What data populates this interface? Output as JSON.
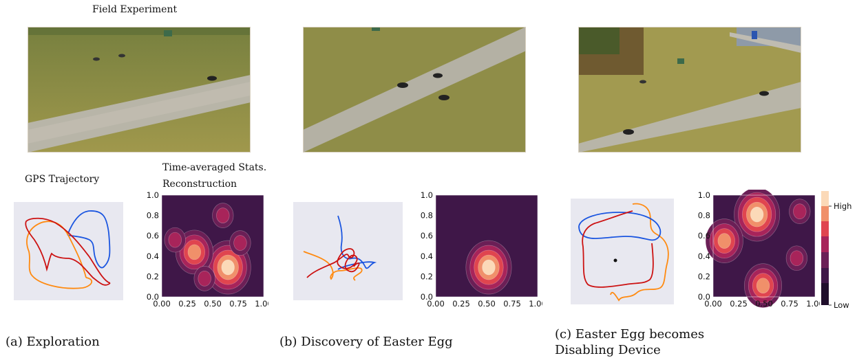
{
  "figure": {
    "titles": {
      "field_experiment": "Field Experiment",
      "gps_trajectory": "GPS Trajectory",
      "time_averaged": "Time-averaged Stats.",
      "reconstruction": "Reconstruction"
    },
    "captions": [
      {
        "line1": "(a) Exploration",
        "line2": ""
      },
      {
        "line1": "(b) Discovery of Easter Egg",
        "line2": ""
      },
      {
        "line1": "(c) Easter Egg becomes",
        "line2": "Disabling Device"
      }
    ],
    "colorbar": {
      "high": "High",
      "low": "Low"
    },
    "colors": {
      "trajectory_red": "#cc1111",
      "trajectory_orange": "#ff8a10",
      "trajectory_blue": "#1a55e0",
      "plot_bg": "#e8e8f0",
      "heatmap_low": "#2e1439",
      "heatmap_high": "#fbd9b8"
    }
  },
  "chart_data": [
    {
      "type": "heatmap",
      "panel": "a",
      "xlim": [
        0,
        1
      ],
      "ylim": [
        0,
        1
      ],
      "x_ticks": [
        "0.00",
        "0.25",
        "0.50",
        "0.75",
        "1.00"
      ],
      "y_ticks": [
        "0.0",
        "0.2",
        "0.4",
        "0.6",
        "0.8",
        "1.0"
      ],
      "hotspots": [
        {
          "x": 0.65,
          "y": 0.29,
          "level": 1.0
        },
        {
          "x": 0.32,
          "y": 0.44,
          "level": 0.82
        },
        {
          "x": 0.13,
          "y": 0.56,
          "level": 0.55
        },
        {
          "x": 0.77,
          "y": 0.53,
          "level": 0.55
        },
        {
          "x": 0.6,
          "y": 0.8,
          "level": 0.55
        },
        {
          "x": 0.42,
          "y": 0.18,
          "level": 0.45
        }
      ]
    },
    {
      "type": "heatmap",
      "panel": "b",
      "xlim": [
        0,
        1
      ],
      "ylim": [
        0,
        1
      ],
      "x_ticks": [
        "0.00",
        "0.25",
        "0.50",
        "0.75",
        "1.00"
      ],
      "y_ticks": [
        "0.0",
        "0.2",
        "0.4",
        "0.6",
        "0.8",
        "1.0"
      ],
      "hotspots": [
        {
          "x": 0.52,
          "y": 0.29,
          "level": 1.0
        }
      ]
    },
    {
      "type": "heatmap",
      "panel": "c",
      "xlim": [
        0,
        1
      ],
      "ylim": [
        0,
        1
      ],
      "x_ticks": [
        "0.00",
        "0.25",
        "0.50",
        "0.75",
        "1.00"
      ],
      "y_ticks": [
        "0.0",
        "0.2",
        "0.4",
        "0.6",
        "0.8",
        "1.0"
      ],
      "hotspots": [
        {
          "x": 0.43,
          "y": 0.81,
          "level": 1.0
        },
        {
          "x": 0.11,
          "y": 0.55,
          "level": 0.8
        },
        {
          "x": 0.49,
          "y": 0.11,
          "level": 0.8
        },
        {
          "x": 0.85,
          "y": 0.84,
          "level": 0.55
        },
        {
          "x": 0.82,
          "y": 0.38,
          "level": 0.55
        }
      ],
      "colorbar_ticks": [
        "High",
        "Low"
      ]
    }
  ]
}
